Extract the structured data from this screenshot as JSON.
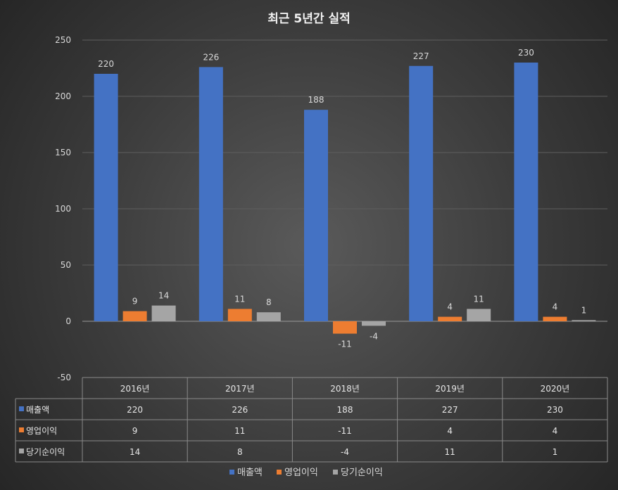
{
  "chart_data": {
    "type": "bar",
    "title": "최근 5년간 실적",
    "categories": [
      "2016년",
      "2017년",
      "2018년",
      "2019년",
      "2020년"
    ],
    "series": [
      {
        "name": "매출액",
        "values": [
          220,
          226,
          188,
          227,
          230
        ],
        "color": "#4472c4"
      },
      {
        "name": "영업이익",
        "values": [
          9,
          11,
          -11,
          4,
          4
        ],
        "color": "#ed7d31"
      },
      {
        "name": "당기순이익",
        "values": [
          14,
          8,
          -4,
          11,
          1
        ],
        "color": "#a5a5a5"
      }
    ],
    "yticks": [
      250,
      200,
      150,
      100,
      50,
      0,
      -50
    ],
    "ylim": [
      -50,
      250
    ],
    "grid": true,
    "legend_position": "bottom",
    "data_table": true
  }
}
